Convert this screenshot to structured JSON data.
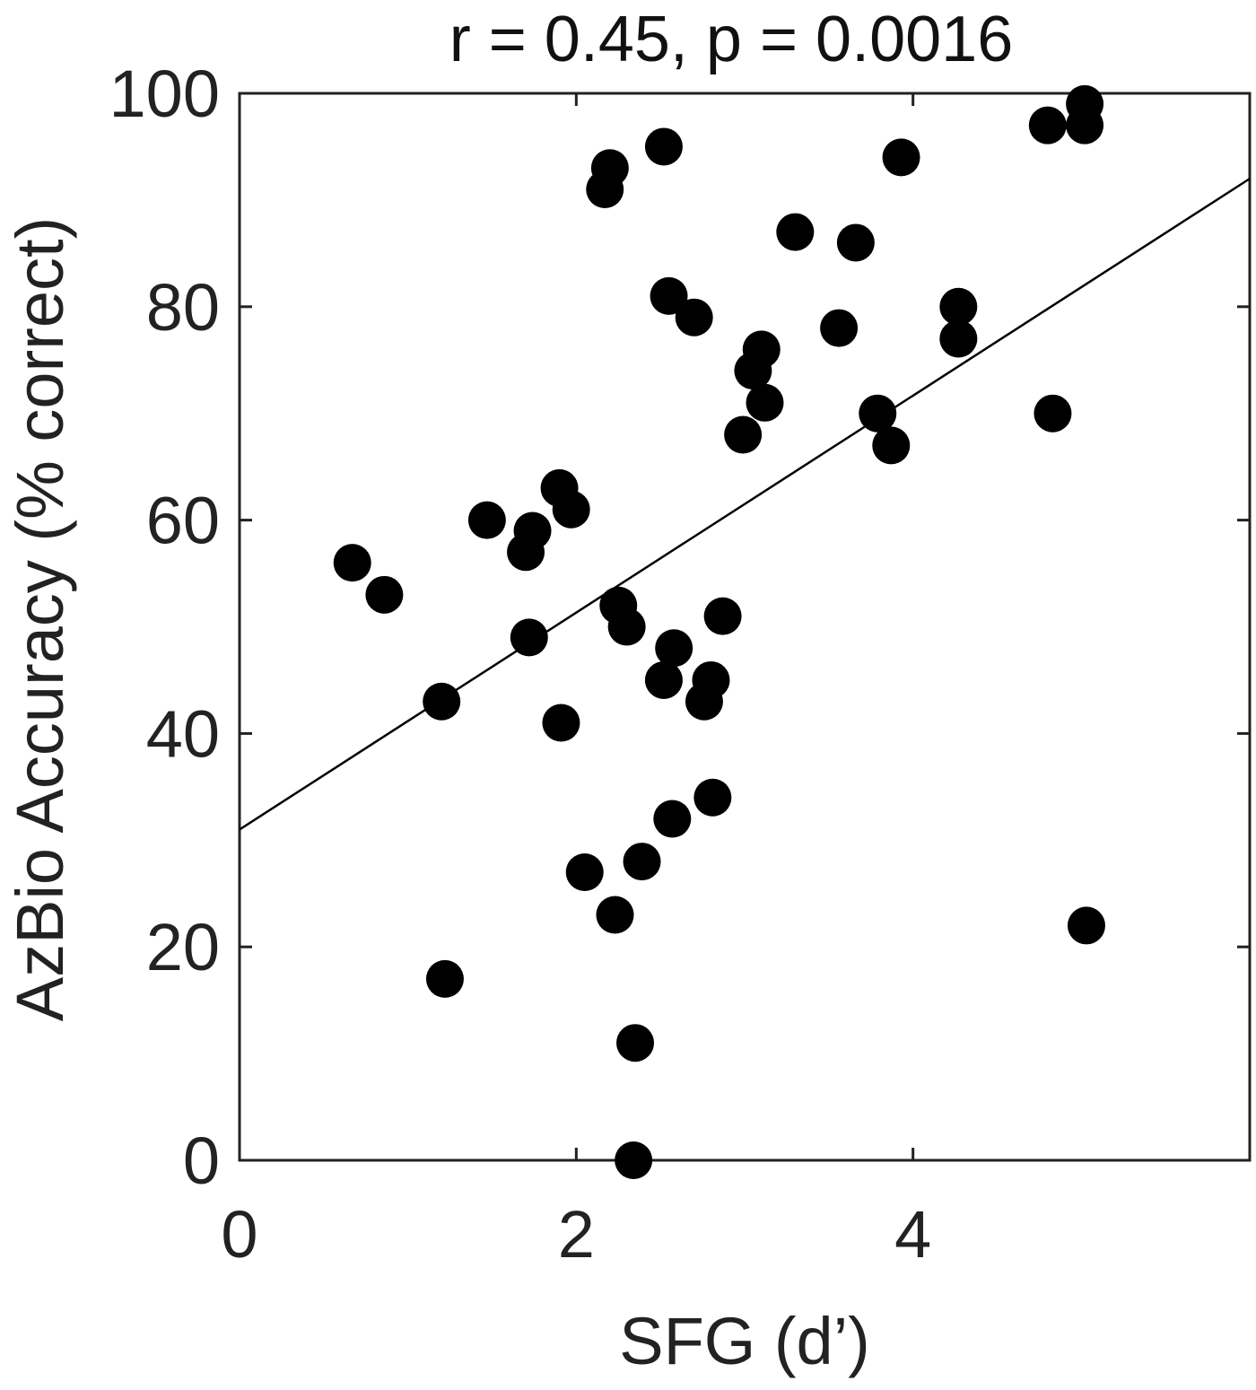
{
  "chart_data": {
    "type": "scatter",
    "title": "r = 0.45, p = 0.0016",
    "xlabel": "SFG (d’)",
    "ylabel": "AzBio Accuracy (% correct)",
    "xlim": [
      0,
      6
    ],
    "ylim": [
      0,
      100
    ],
    "xticks": [
      0,
      2,
      4
    ],
    "yticks": [
      0,
      20,
      40,
      60,
      80,
      100
    ],
    "grid": false,
    "marker_color": "#000000",
    "points": [
      {
        "x": 0.67,
        "y": 56
      },
      {
        "x": 0.86,
        "y": 53
      },
      {
        "x": 1.2,
        "y": 43
      },
      {
        "x": 1.22,
        "y": 17
      },
      {
        "x": 1.47,
        "y": 60
      },
      {
        "x": 1.7,
        "y": 57
      },
      {
        "x": 1.74,
        "y": 59
      },
      {
        "x": 1.72,
        "y": 49
      },
      {
        "x": 1.9,
        "y": 63
      },
      {
        "x": 1.97,
        "y": 61
      },
      {
        "x": 1.91,
        "y": 41
      },
      {
        "x": 2.05,
        "y": 27
      },
      {
        "x": 2.17,
        "y": 91
      },
      {
        "x": 2.2,
        "y": 93
      },
      {
        "x": 2.23,
        "y": 23
      },
      {
        "x": 2.25,
        "y": 52
      },
      {
        "x": 2.3,
        "y": 50
      },
      {
        "x": 2.35,
        "y": 11
      },
      {
        "x": 2.34,
        "y": 0
      },
      {
        "x": 2.39,
        "y": 28
      },
      {
        "x": 2.52,
        "y": 95
      },
      {
        "x": 2.55,
        "y": 81
      },
      {
        "x": 2.52,
        "y": 45
      },
      {
        "x": 2.58,
        "y": 48
      },
      {
        "x": 2.57,
        "y": 32
      },
      {
        "x": 2.7,
        "y": 79
      },
      {
        "x": 2.76,
        "y": 43
      },
      {
        "x": 2.8,
        "y": 45
      },
      {
        "x": 2.81,
        "y": 34
      },
      {
        "x": 2.87,
        "y": 51
      },
      {
        "x": 2.99,
        "y": 68
      },
      {
        "x": 3.05,
        "y": 74
      },
      {
        "x": 3.1,
        "y": 76
      },
      {
        "x": 3.12,
        "y": 71
      },
      {
        "x": 3.3,
        "y": 87
      },
      {
        "x": 3.56,
        "y": 78
      },
      {
        "x": 3.66,
        "y": 86
      },
      {
        "x": 3.79,
        "y": 70
      },
      {
        "x": 3.87,
        "y": 67
      },
      {
        "x": 3.93,
        "y": 94
      },
      {
        "x": 4.27,
        "y": 80
      },
      {
        "x": 4.27,
        "y": 77
      },
      {
        "x": 4.8,
        "y": 97
      },
      {
        "x": 4.83,
        "y": 70
      },
      {
        "x": 5.02,
        "y": 99
      },
      {
        "x": 5.02,
        "y": 97
      },
      {
        "x": 5.03,
        "y": 22
      }
    ],
    "fit_line": {
      "x": [
        0,
        6
      ],
      "y": [
        31,
        92
      ]
    }
  }
}
